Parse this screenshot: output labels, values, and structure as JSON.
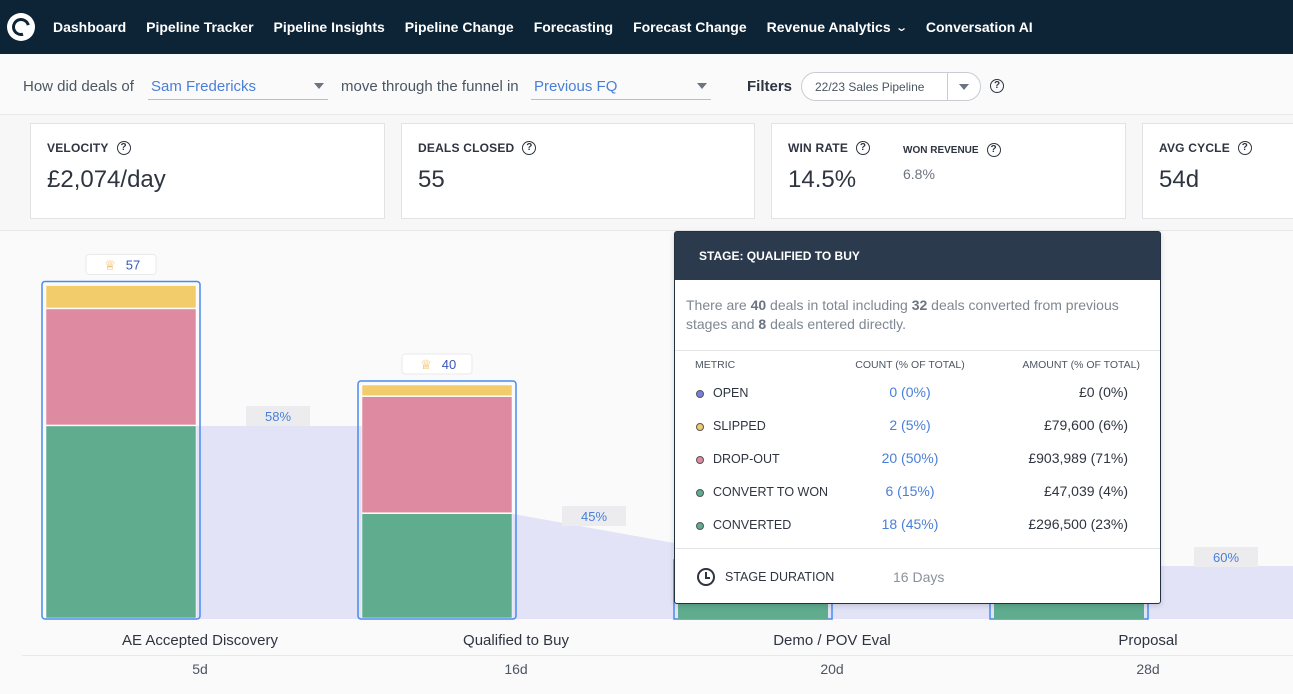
{
  "nav": {
    "items": [
      "Dashboard",
      "Pipeline Tracker",
      "Pipeline Insights",
      "Pipeline Change",
      "Forecasting",
      "Forecast Change",
      "Revenue Analytics",
      "Conversation AI"
    ]
  },
  "filter": {
    "prefix": "How did  deals  of",
    "owner": "Sam Fredericks",
    "middle": "move through the funnel in",
    "period": "Previous FQ",
    "filters_label": "Filters",
    "pipeline": "22/23 Sales Pipeline"
  },
  "metrics": {
    "velocity": {
      "label": "VELOCITY",
      "value": "£2,074/day"
    },
    "deals_closed": {
      "label": "DEALS CLOSED",
      "value": "55"
    },
    "win_rate": {
      "label": "WIN RATE",
      "value": "14.5%",
      "sub_label": "WON REVENUE",
      "sub_value": "6.8%"
    },
    "avg_cycle": {
      "label": "AVG CYCLE",
      "value": "54d"
    }
  },
  "chart_data": {
    "type": "bar",
    "categories": [
      "AE Accepted Discovery",
      "Qualified to Buy",
      "Demo / POV Eval",
      "Proposal"
    ],
    "durations": [
      "5d",
      "16d",
      "20d",
      "28d"
    ],
    "totals": [
      57,
      40,
      null,
      null
    ],
    "total_labels": [
      "57",
      "40",
      "",
      ""
    ],
    "conversion_labels": [
      "58%",
      "45%",
      "",
      "60%"
    ],
    "conversion_rates": [
      58,
      45,
      null,
      60
    ],
    "series": [
      {
        "name": "CONVERTED",
        "color": "#5fac8f",
        "values": [
          33,
          18,
          null,
          null
        ]
      },
      {
        "name": "DROP-OUT",
        "color": "#de8aa0",
        "values": [
          20,
          20,
          null,
          null
        ]
      },
      {
        "name": "SLIPPED",
        "color": "#f2cb6b",
        "values": [
          4,
          2,
          null,
          null
        ]
      }
    ],
    "colors": {
      "outline": "#4a8af0",
      "flow": "#e2e3f7",
      "badge": "#e9eaec"
    }
  },
  "tooltip": {
    "title": "STAGE: QUALIFIED TO BUY",
    "desc_1": "There are ",
    "total": "40",
    "desc_2": " deals in total including ",
    "converted": "32",
    "desc_3": " deals converted from previous stages and ",
    "entered": "8",
    "desc_4": " deals entered directly.",
    "headers": {
      "metric": "METRIC",
      "count": "COUNT (% OF TOTAL)",
      "amount": "AMOUNT (% OF TOTAL)"
    },
    "rows": [
      {
        "metric": "OPEN",
        "count": "0 (0%)",
        "amount": "£0 (0%)",
        "color": "#7a7de8"
      },
      {
        "metric": "SLIPPED",
        "count": "2 (5%)",
        "amount": "£79,600 (6%)",
        "color": "#f2cb6b"
      },
      {
        "metric": "DROP-OUT",
        "count": "20 (50%)",
        "amount": "£903,989 (71%)",
        "color": "#de8aa0"
      },
      {
        "metric": "CONVERT TO WON",
        "count": "6 (15%)",
        "amount": "£47,039 (4%)",
        "color": "#5fac8f"
      },
      {
        "metric": "CONVERTED",
        "count": "18 (45%)",
        "amount": "£296,500 (23%)",
        "color": "#5fac8f"
      }
    ],
    "duration_label": "STAGE DURATION",
    "duration_value": "16 Days"
  }
}
